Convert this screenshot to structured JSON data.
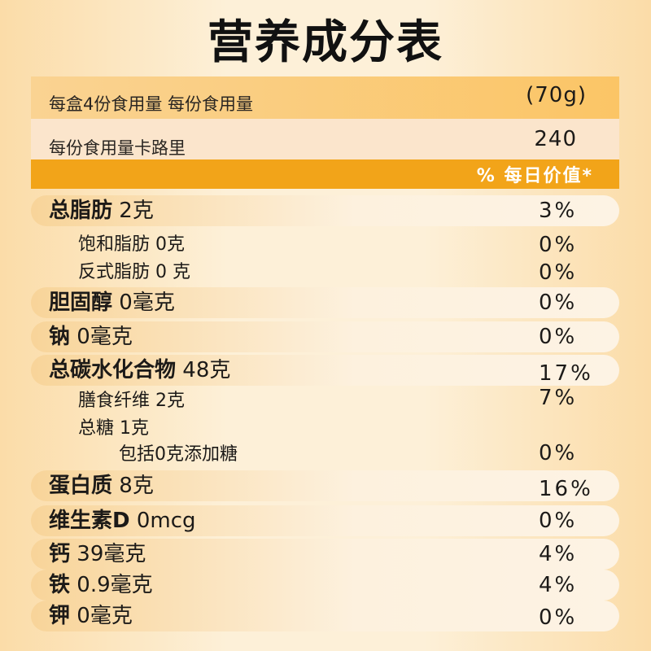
{
  "title": "营养成分表",
  "serving": {
    "label": "每盒4份食用量 每份食用量",
    "value": "(70g)"
  },
  "calories": {
    "label": "每份食用量卡路里",
    "value": "240"
  },
  "dv_header": "% 每日价值*",
  "nutrients": [
    {
      "name": "总脂肪",
      "amount": "2克",
      "dv": "3%"
    },
    {
      "name": "饱和脂肪 0克",
      "amount": "",
      "dv": "0%"
    },
    {
      "name": "反式脂肪 0 克",
      "amount": "",
      "dv": "0%"
    },
    {
      "name": "胆固醇",
      "amount": "0毫克",
      "dv": "0%"
    },
    {
      "name": "钠",
      "amount": "0毫克",
      "dv": "0%"
    },
    {
      "name": "总碳水化合物",
      "amount": "48克",
      "dv": "17%"
    },
    {
      "name": "膳食纤维 2克",
      "amount": "",
      "dv": "7%"
    },
    {
      "name": "总糖 1克",
      "amount": "",
      "dv": ""
    },
    {
      "name": "包括0克添加糖",
      "amount": "",
      "dv": "0%"
    },
    {
      "name": "蛋白质",
      "amount": "8克",
      "dv": "16%"
    },
    {
      "name": "维生素D",
      "amount": "0mcg",
      "dv": "0%"
    },
    {
      "name": "钙",
      "amount": "39毫克",
      "dv": "4%"
    },
    {
      "name": "铁",
      "amount": "0.9毫克",
      "dv": "4%"
    },
    {
      "name": "钾",
      "amount": "0毫克",
      "dv": "0%"
    }
  ]
}
